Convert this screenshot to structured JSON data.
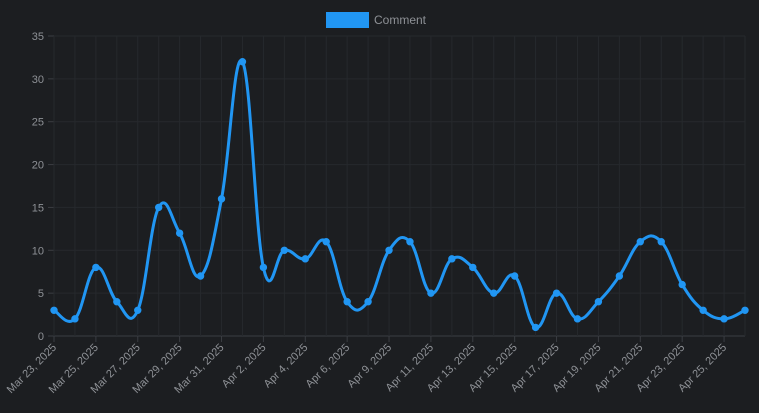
{
  "chart_data": {
    "type": "line",
    "title": "",
    "xlabel": "",
    "ylabel": "",
    "ylim": [
      0,
      35
    ],
    "yticks": [
      0,
      5,
      10,
      15,
      20,
      25,
      30,
      35
    ],
    "grid": true,
    "legend_position": "top-center",
    "categories": [
      "Mar 23, 2025",
      "Mar 24, 2025",
      "Mar 25, 2025",
      "Mar 26, 2025",
      "Mar 27, 2025",
      "Mar 28, 2025",
      "Mar 29, 2025",
      "Mar 30, 2025",
      "Mar 31, 2025",
      "Apr 1, 2025",
      "Apr 2, 2025",
      "Apr 3, 2025",
      "Apr 4, 2025",
      "Apr 5, 2025",
      "Apr 6, 2025",
      "Apr 8, 2025",
      "Apr 9, 2025",
      "Apr 10, 2025",
      "Apr 11, 2025",
      "Apr 12, 2025",
      "Apr 13, 2025",
      "Apr 14, 2025",
      "Apr 15, 2025",
      "Apr 16, 2025",
      "Apr 17, 2025",
      "Apr 18, 2025",
      "Apr 19, 2025",
      "Apr 20, 2025",
      "Apr 21, 2025",
      "Apr 22, 2025",
      "Apr 23, 2025",
      "Apr 24, 2025",
      "Apr 25, 2025",
      "Apr 26, 2025"
    ],
    "tick_labels": [
      "Mar 23, 2025",
      "Mar 25, 2025",
      "Mar 27, 2025",
      "Mar 29, 2025",
      "Mar 31, 2025",
      "Apr 2, 2025",
      "Apr 4, 2025",
      "Apr 6, 2025",
      "Apr 9, 2025",
      "Apr 11, 2025",
      "Apr 13, 2025",
      "Apr 15, 2025",
      "Apr 17, 2025",
      "Apr 19, 2025",
      "Apr 21, 2025",
      "Apr 23, 2025",
      "Apr 25, 2025"
    ],
    "series": [
      {
        "name": "Comment",
        "color": "#2196f3",
        "values": [
          3,
          2,
          8,
          4,
          3,
          15,
          12,
          7,
          16,
          32,
          8,
          10,
          9,
          11,
          4,
          4,
          10,
          11,
          5,
          9,
          8,
          5,
          7,
          1,
          5,
          2,
          4,
          7,
          11,
          11,
          6,
          3,
          2,
          3
        ]
      }
    ]
  }
}
